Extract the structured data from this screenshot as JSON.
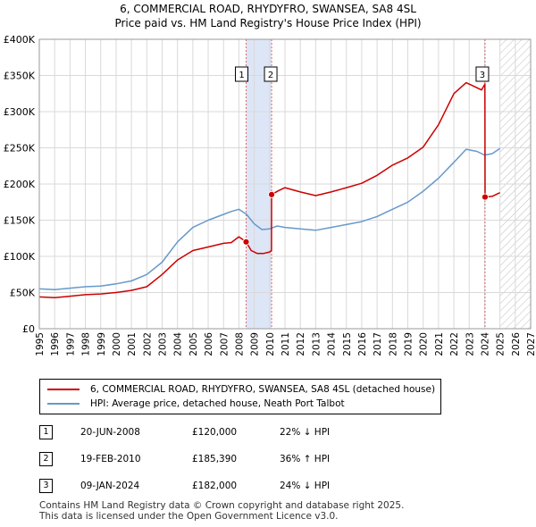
{
  "chart_data": {
    "type": "line",
    "title": "6, COMMERCIAL ROAD, RHYDYFRO, SWANSEA, SA8 4SL",
    "subtitle": "Price paid vs. HM Land Registry's House Price Index (HPI)",
    "xlim": [
      1995,
      2027
    ],
    "ylim": [
      0,
      400000
    ],
    "x_ticks": [
      "1995",
      "1996",
      "1997",
      "1998",
      "1999",
      "2000",
      "2001",
      "2002",
      "2003",
      "2004",
      "2005",
      "2006",
      "2007",
      "2008",
      "2009",
      "2010",
      "2011",
      "2012",
      "2013",
      "2014",
      "2015",
      "2016",
      "2017",
      "2018",
      "2019",
      "2020",
      "2021",
      "2022",
      "2023",
      "2024",
      "2025",
      "2026",
      "2027"
    ],
    "y_ticks": [
      {
        "value": 0,
        "label": "£0"
      },
      {
        "value": 50000,
        "label": "£50K"
      },
      {
        "value": 100000,
        "label": "£100K"
      },
      {
        "value": 150000,
        "label": "£150K"
      },
      {
        "value": 200000,
        "label": "£200K"
      },
      {
        "value": 250000,
        "label": "£250K"
      },
      {
        "value": 300000,
        "label": "£300K"
      },
      {
        "value": 350000,
        "label": "£350K"
      },
      {
        "value": 400000,
        "label": "£400K"
      }
    ],
    "grid": true,
    "future_hatch_from": 2025.0,
    "sale_bands": [
      [
        2008.47,
        2010.13
      ]
    ],
    "series": [
      {
        "name": "6, COMMERCIAL ROAD, RHYDYFRO, SWANSEA, SA8 4SL (detached house)",
        "color": "#cc0000",
        "x": [
          1995.0,
          1996.0,
          1997.0,
          1998.0,
          1999.0,
          2000.0,
          2001.0,
          2002.0,
          2003.0,
          2004.0,
          2005.0,
          2006.0,
          2007.0,
          2007.5,
          2008.0,
          2008.47,
          2008.8,
          2009.2,
          2009.6,
          2010.0,
          2010.12,
          2010.13,
          2010.6,
          2011.0,
          2012.0,
          2013.0,
          2014.0,
          2015.0,
          2016.0,
          2017.0,
          2018.0,
          2019.0,
          2020.0,
          2021.0,
          2022.0,
          2022.8,
          2023.3,
          2023.8,
          2024.02,
          2024.03,
          2024.5,
          2025.0
        ],
        "y": [
          44000,
          43000,
          45000,
          47000,
          48000,
          50000,
          53000,
          58000,
          75000,
          95000,
          108000,
          113000,
          118000,
          119000,
          127000,
          120000,
          108000,
          104000,
          104000,
          106000,
          108000,
          185390,
          191000,
          195000,
          189000,
          184000,
          189000,
          195000,
          201000,
          212000,
          226000,
          236000,
          251000,
          282000,
          325000,
          340000,
          335000,
          330000,
          338000,
          182000,
          183000,
          188000
        ]
      },
      {
        "name": "HPI: Average price, detached house, Neath Port Talbot",
        "color": "#6699cc",
        "x": [
          1995.0,
          1996.0,
          1997.0,
          1998.0,
          1999.0,
          2000.0,
          2001.0,
          2002.0,
          2003.0,
          2004.0,
          2005.0,
          2006.0,
          2007.0,
          2007.5,
          2008.0,
          2008.5,
          2009.0,
          2009.5,
          2010.0,
          2010.5,
          2011.0,
          2012.0,
          2013.0,
          2014.0,
          2015.0,
          2016.0,
          2017.0,
          2018.0,
          2019.0,
          2020.0,
          2021.0,
          2022.0,
          2022.8,
          2023.5,
          2024.0,
          2024.5,
          2025.0
        ],
        "y": [
          55000,
          54000,
          56000,
          58000,
          59000,
          62000,
          66000,
          75000,
          92000,
          120000,
          140000,
          150000,
          158000,
          162000,
          165000,
          158000,
          145000,
          137000,
          138000,
          142000,
          140000,
          138000,
          136000,
          140000,
          144000,
          148000,
          155000,
          165000,
          175000,
          190000,
          208000,
          230000,
          248000,
          245000,
          240000,
          242000,
          249000
        ]
      }
    ],
    "sales": [
      {
        "id": "1",
        "x": 2008.47,
        "y": 120000
      },
      {
        "id": "2",
        "x": 2010.13,
        "y": 185390
      },
      {
        "id": "3",
        "x": 2024.03,
        "y": 182000
      }
    ]
  },
  "legend": {
    "property_label": "6, COMMERCIAL ROAD, RHYDYFRO, SWANSEA, SA8 4SL (detached house)",
    "hpi_label": "HPI: Average price, detached house, Neath Port Talbot"
  },
  "sales_table": [
    {
      "id": "1",
      "date": "20-JUN-2008",
      "price": "£120,000",
      "hpi": "22% ↓ HPI"
    },
    {
      "id": "2",
      "date": "19-FEB-2010",
      "price": "£185,390",
      "hpi": "36% ↑ HPI"
    },
    {
      "id": "3",
      "date": "09-JAN-2024",
      "price": "£182,000",
      "hpi": "24% ↓ HPI"
    }
  ],
  "footer": {
    "line1": "Contains HM Land Registry data © Crown copyright and database right 2025.",
    "line2": "This data is licensed under the Open Government Licence v3.0."
  },
  "colors": {
    "property": "#cc0000",
    "hpi": "#6699cc",
    "band": "#dde6f7",
    "grid": "#d9d9d9"
  }
}
